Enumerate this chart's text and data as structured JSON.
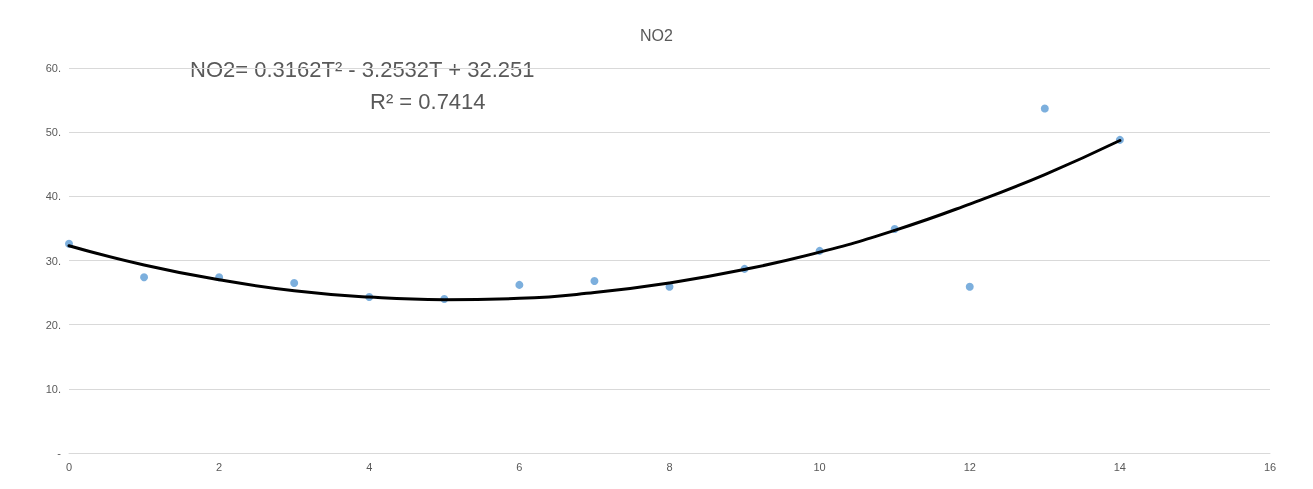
{
  "chart_data": {
    "type": "scatter",
    "title": "NO2",
    "x": [
      0,
      1,
      2,
      3,
      4,
      5,
      6,
      7,
      8,
      9,
      10,
      11,
      12,
      13,
      14
    ],
    "series": [
      {
        "color": "#5b9bd5",
        "marker": "circle",
        "values": [
          32.6,
          27.4,
          27.4,
          26.5,
          24.3,
          24.0,
          26.2,
          26.8,
          25.9,
          28.7,
          31.5,
          34.9,
          25.9,
          53.7,
          48.8
        ]
      },
      {
        "type": "line",
        "color": "#000000",
        "marker": "none",
        "line_style": "solid",
        "x": [
          0,
          1,
          2,
          3,
          4,
          5,
          6,
          7,
          8,
          9,
          10,
          11,
          12,
          13,
          14
        ],
        "values": [
          32.3,
          29.3,
          27.0,
          25.3,
          24.3,
          23.9,
          24.1,
          25.0,
          26.5,
          28.6,
          31.3,
          34.7,
          38.8,
          43.4,
          48.7
        ]
      }
    ],
    "xlim": [
      0,
      16
    ],
    "xticks": [
      0,
      2,
      4,
      6,
      8,
      10,
      12,
      14,
      16
    ],
    "ylim": [
      0,
      60
    ],
    "yticks": [
      {
        "value": 0,
        "label": "-"
      },
      {
        "value": 10,
        "label": "10."
      },
      {
        "value": 20,
        "label": "20."
      },
      {
        "value": 30,
        "label": "30."
      },
      {
        "value": 40,
        "label": "40."
      },
      {
        "value": 50,
        "label": "50."
      },
      {
        "value": 60,
        "label": "60."
      }
    ],
    "grid": "y",
    "annotations": [
      "NO2= 0.3162T² - 3.2532T + 32.251",
      "R² = 0.7414"
    ]
  }
}
